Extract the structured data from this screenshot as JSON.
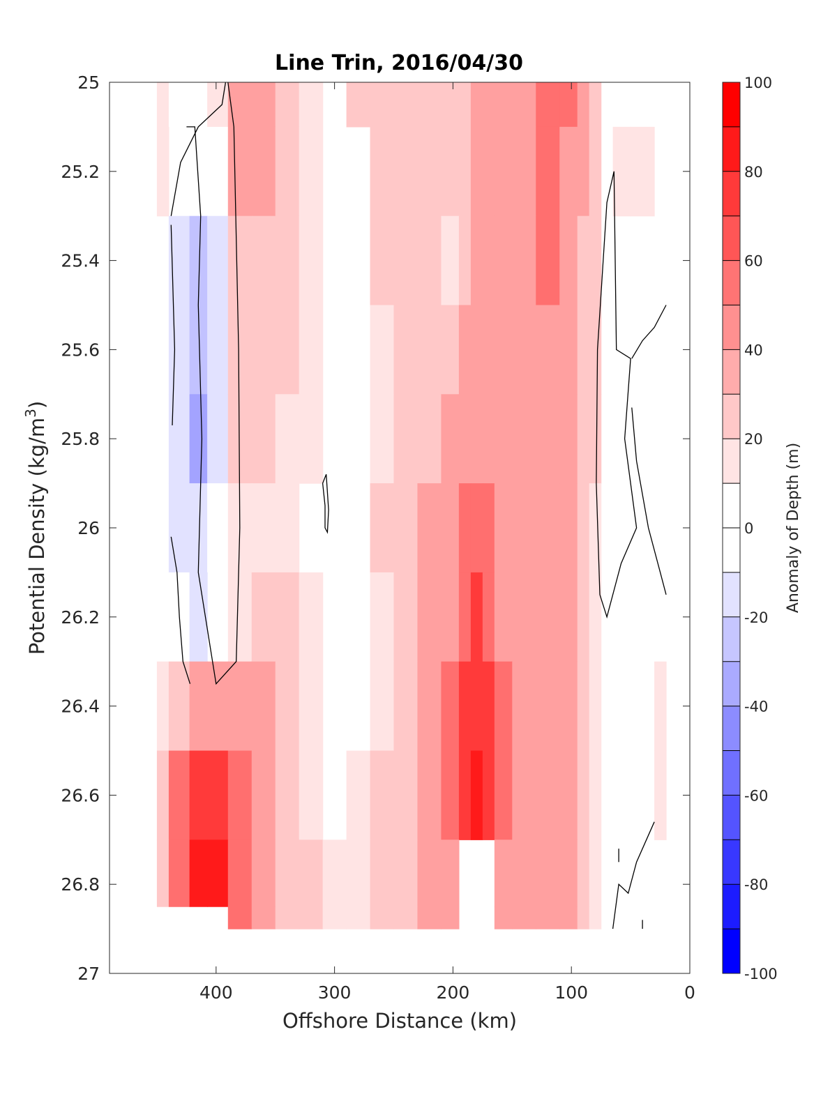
{
  "chart_data": {
    "type": "heatmap",
    "title": "Line Trin, 2016/04/30",
    "xlabel": "Offshore Distance (km)",
    "ylabel_main": "Potential Density (kg/m",
    "ylabel_sup": "3",
    "ylabel_close": ")",
    "colorbar_label": "Anomaly of Depth (m)",
    "xlim": [
      490,
      0
    ],
    "ylim": [
      25,
      27
    ],
    "x_ticks": [
      400,
      300,
      200,
      100,
      0
    ],
    "y_ticks": [
      25,
      25.2,
      25.4,
      25.6,
      25.8,
      26,
      26.2,
      26.4,
      26.6,
      26.8,
      27
    ],
    "y_tick_labels": [
      "25",
      "25.2",
      "25.4",
      "25.6",
      "25.8",
      "26",
      "26.2",
      "26.4",
      "26.6",
      "26.8",
      "27"
    ],
    "colorbar_ticks": [
      "100",
      "80",
      "60",
      "40",
      "20",
      "0",
      "-20",
      "-40",
      "-60",
      "-80",
      "-100"
    ],
    "colorbar_range": [
      -100,
      100
    ],
    "colorbar_levels": [
      {
        "value": 90,
        "color": "#ff1a1a"
      },
      {
        "value": 70,
        "color": "#ff3a3a"
      },
      {
        "value": 50,
        "color": "#ff6f6f"
      },
      {
        "value": 30,
        "color": "#ffa0a0"
      },
      {
        "value": 15,
        "color": "#ffc8c8"
      },
      {
        "value": 5,
        "color": "#ffe4e4"
      },
      {
        "value": 0,
        "color": "#ffffff"
      },
      {
        "value": -15,
        "color": "#e2e2ff"
      },
      {
        "value": -30,
        "color": "#c2c2ff"
      },
      {
        "value": -50,
        "color": "#a3a3ff"
      },
      {
        "value": -70,
        "color": "#6f6fff"
      },
      {
        "value": -90,
        "color": "#3a3aff"
      }
    ],
    "colorbar_colors": [
      "#ff0000",
      "#ff1a1a",
      "#ff3a3a",
      "#ff5656",
      "#ff7474",
      "#ff9090",
      "#ffacac",
      "#ffc8c8",
      "#ffe4e4",
      "#ffffff",
      "#ffffff",
      "#e2e2ff",
      "#c6c6ff",
      "#aaaaff",
      "#8c8cff",
      "#7070ff",
      "#5454ff",
      "#3838ff",
      "#1c1cff",
      "#0000ff"
    ],
    "grid": false,
    "anomaly_field": {
      "distance_km": [
        450,
        430,
        415,
        400,
        380,
        360,
        340,
        320,
        300,
        280,
        260,
        240,
        220,
        200,
        190,
        180,
        170,
        160,
        140,
        120,
        100,
        90,
        80,
        70,
        60,
        40,
        20
      ],
      "density": [
        25.0,
        25.2,
        25.4,
        25.6,
        25.8,
        26.0,
        26.2,
        26.4,
        26.6,
        26.8,
        26.9
      ],
      "values_m": [
        [
          10,
          3,
          3,
          5,
          40,
          30,
          20,
          10,
          0,
          15,
          15,
          15,
          20,
          25,
          25,
          30,
          35,
          35,
          40,
          55,
          60,
          40,
          20,
          0,
          0,
          0,
          0
        ],
        [
          5,
          0,
          -10,
          -5,
          45,
          30,
          20,
          10,
          0,
          0,
          15,
          15,
          20,
          15,
          25,
          30,
          30,
          35,
          40,
          55,
          45,
          30,
          15,
          0,
          10,
          10,
          0
        ],
        [
          0,
          -20,
          -30,
          -20,
          25,
          25,
          15,
          5,
          0,
          0,
          15,
          15,
          15,
          10,
          25,
          30,
          30,
          35,
          40,
          50,
          40,
          25,
          15,
          0,
          0,
          0,
          0
        ],
        [
          0,
          -25,
          -45,
          -20,
          15,
          20,
          15,
          5,
          0,
          0,
          10,
          15,
          15,
          20,
          30,
          35,
          35,
          35,
          35,
          40,
          35,
          25,
          15,
          0,
          0,
          0,
          0
        ],
        [
          0,
          -25,
          -50,
          -15,
          15,
          15,
          10,
          5,
          0,
          0,
          10,
          20,
          25,
          30,
          40,
          45,
          40,
          35,
          35,
          35,
          30,
          25,
          15,
          0,
          0,
          0,
          0
        ],
        [
          0,
          -15,
          -20,
          -10,
          10,
          10,
          5,
          0,
          0,
          0,
          15,
          20,
          30,
          40,
          55,
          60,
          55,
          40,
          35,
          30,
          30,
          20,
          10,
          0,
          0,
          0,
          0
        ],
        [
          0,
          -10,
          -15,
          0,
          10,
          25,
          15,
          5,
          0,
          0,
          10,
          20,
          35,
          45,
          65,
          75,
          65,
          45,
          35,
          40,
          35,
          20,
          10,
          0,
          0,
          0,
          0
        ],
        [
          10,
          20,
          30,
          30,
          30,
          35,
          20,
          10,
          0,
          0,
          10,
          25,
          35,
          50,
          75,
          85,
          75,
          50,
          40,
          40,
          35,
          25,
          10,
          0,
          0,
          0,
          10
        ],
        [
          15,
          50,
          75,
          70,
          50,
          40,
          25,
          10,
          0,
          10,
          15,
          25,
          35,
          50,
          80,
          90,
          80,
          50,
          40,
          40,
          35,
          25,
          10,
          0,
          0,
          0,
          10
        ],
        [
          20,
          60,
          95,
          90,
          55,
          40,
          25,
          15,
          10,
          10,
          15,
          25,
          35,
          35,
          0,
          0,
          0,
          45,
          40,
          40,
          35,
          25,
          10,
          0,
          0,
          0,
          0
        ],
        [
          0,
          0,
          0,
          0,
          50,
          40,
          25,
          15,
          10,
          10,
          15,
          25,
          35,
          30,
          0,
          0,
          0,
          40,
          35,
          35,
          30,
          20,
          10,
          0,
          0,
          0,
          0
        ]
      ]
    }
  }
}
